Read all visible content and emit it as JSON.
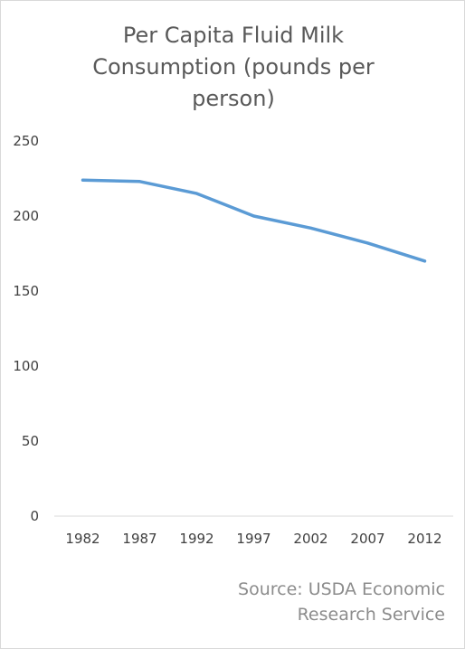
{
  "chart_data": {
    "type": "line",
    "title_lines": [
      "Per Capita Fluid Milk",
      "Consumption (pounds per",
      "person)"
    ],
    "categories": [
      "1982",
      "1987",
      "1992",
      "1997",
      "2002",
      "2007",
      "2012"
    ],
    "series": [
      {
        "values": [
          224,
          223,
          215,
          200,
          192,
          182,
          170
        ],
        "color": "#5b9bd5"
      }
    ],
    "yticks": [
      0,
      50,
      100,
      150,
      200,
      250
    ],
    "ylim": [
      0,
      250
    ],
    "xlabel": "",
    "ylabel": "",
    "grid": false,
    "legend": "none",
    "axis_color": "#d9d9d9"
  },
  "source_lines": [
    "Source: USDA Economic",
    "Research Service"
  ]
}
